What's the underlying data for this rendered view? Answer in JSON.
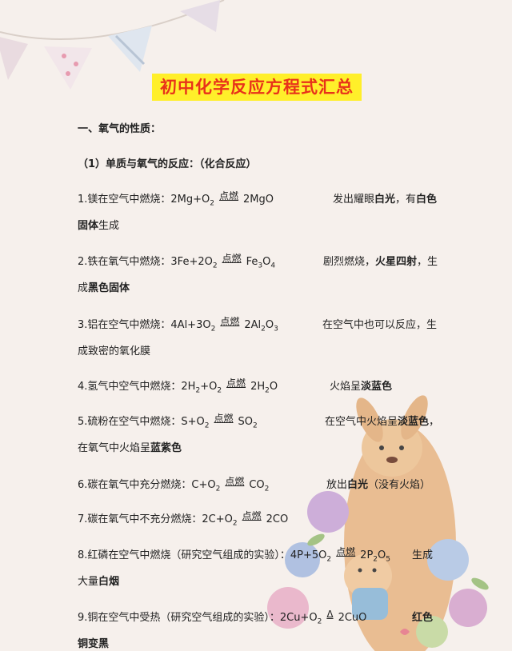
{
  "title": "初中化学反应方程式汇总",
  "section1": "一、氧气的性质：",
  "sub1": "（1）单质与氧气的反应：（化合反应）",
  "r1": {
    "label": "1.镁在空气中燃烧：2Mg+O",
    "s1": "2",
    "cond": "点燃",
    "prod": "2MgO",
    "note_a": "发出耀眼",
    "note_b": "白光",
    "note_c": "，有",
    "note_d": "白色",
    "l2a": "固体",
    "l2b": "生成"
  },
  "r2": {
    "label": "2.铁在氧气中燃烧：3Fe+2O",
    "s1": "2",
    "cond": "点燃",
    "prod_a": "Fe",
    "s2": "3",
    "prod_b": "O",
    "s3": "4",
    "note_a": "剧烈燃烧，",
    "note_b": "火星四射",
    "note_c": "，生",
    "l2a": "成",
    "l2b": "黑色固体"
  },
  "r3": {
    "label": "3.铝在空气中燃烧：4Al+3O",
    "s1": "2",
    "cond": "点燃",
    "prod_a": "2Al",
    "s2": "2",
    "prod_b": "O",
    "s3": "3",
    "note": "在空气中也可以反应，生",
    "l2": "成致密的氧化膜"
  },
  "r4": {
    "label_a": "4.氢气中空气中燃烧：2H",
    "s1": "2",
    "label_b": "+O",
    "s2": "2",
    "cond": "点燃",
    "prod_a": "2H",
    "s3": "2",
    "prod_b": "O",
    "note_a": "火焰呈",
    "note_b": "淡蓝色"
  },
  "r5": {
    "label": "5.硫粉在空气中燃烧：S+O",
    "s1": "2",
    "cond": "点燃",
    "prod_a": "SO",
    "s2": "2",
    "note_a": "在空气中火焰呈",
    "note_b": "淡蓝色",
    "note_c": "，",
    "l2a": "在氧气中火焰呈",
    "l2b": "蓝紫色"
  },
  "r6": {
    "label": "6.碳在氧气中充分燃烧：C+O",
    "s1": "2",
    "cond": "点燃",
    "prod_a": "CO",
    "s2": "2",
    "note_a": "放出",
    "note_b": "白光",
    "note_c": "（没有火焰）"
  },
  "r7": {
    "label": "7.碳在氧气中不充分燃烧：2C+O",
    "s1": "2",
    "cond": "点燃",
    "prod": "2CO"
  },
  "r8": {
    "label": "8.红磷在空气中燃烧（研究空气组成的实验）：4P+5O",
    "s1": "2",
    "cond": "点燃",
    "prod_a": "2P",
    "s2": "2",
    "prod_b": "O",
    "s3": "5",
    "note": "生成",
    "l2a": "大量",
    "l2b": "白烟"
  },
  "r9": {
    "label": "9.铜在空气中受热（研究空气组成的实验）：2Cu+O",
    "s1": "2",
    "cond": "Δ",
    "prod": "2CuO",
    "note": "红色",
    "l2": "铜变黑"
  }
}
